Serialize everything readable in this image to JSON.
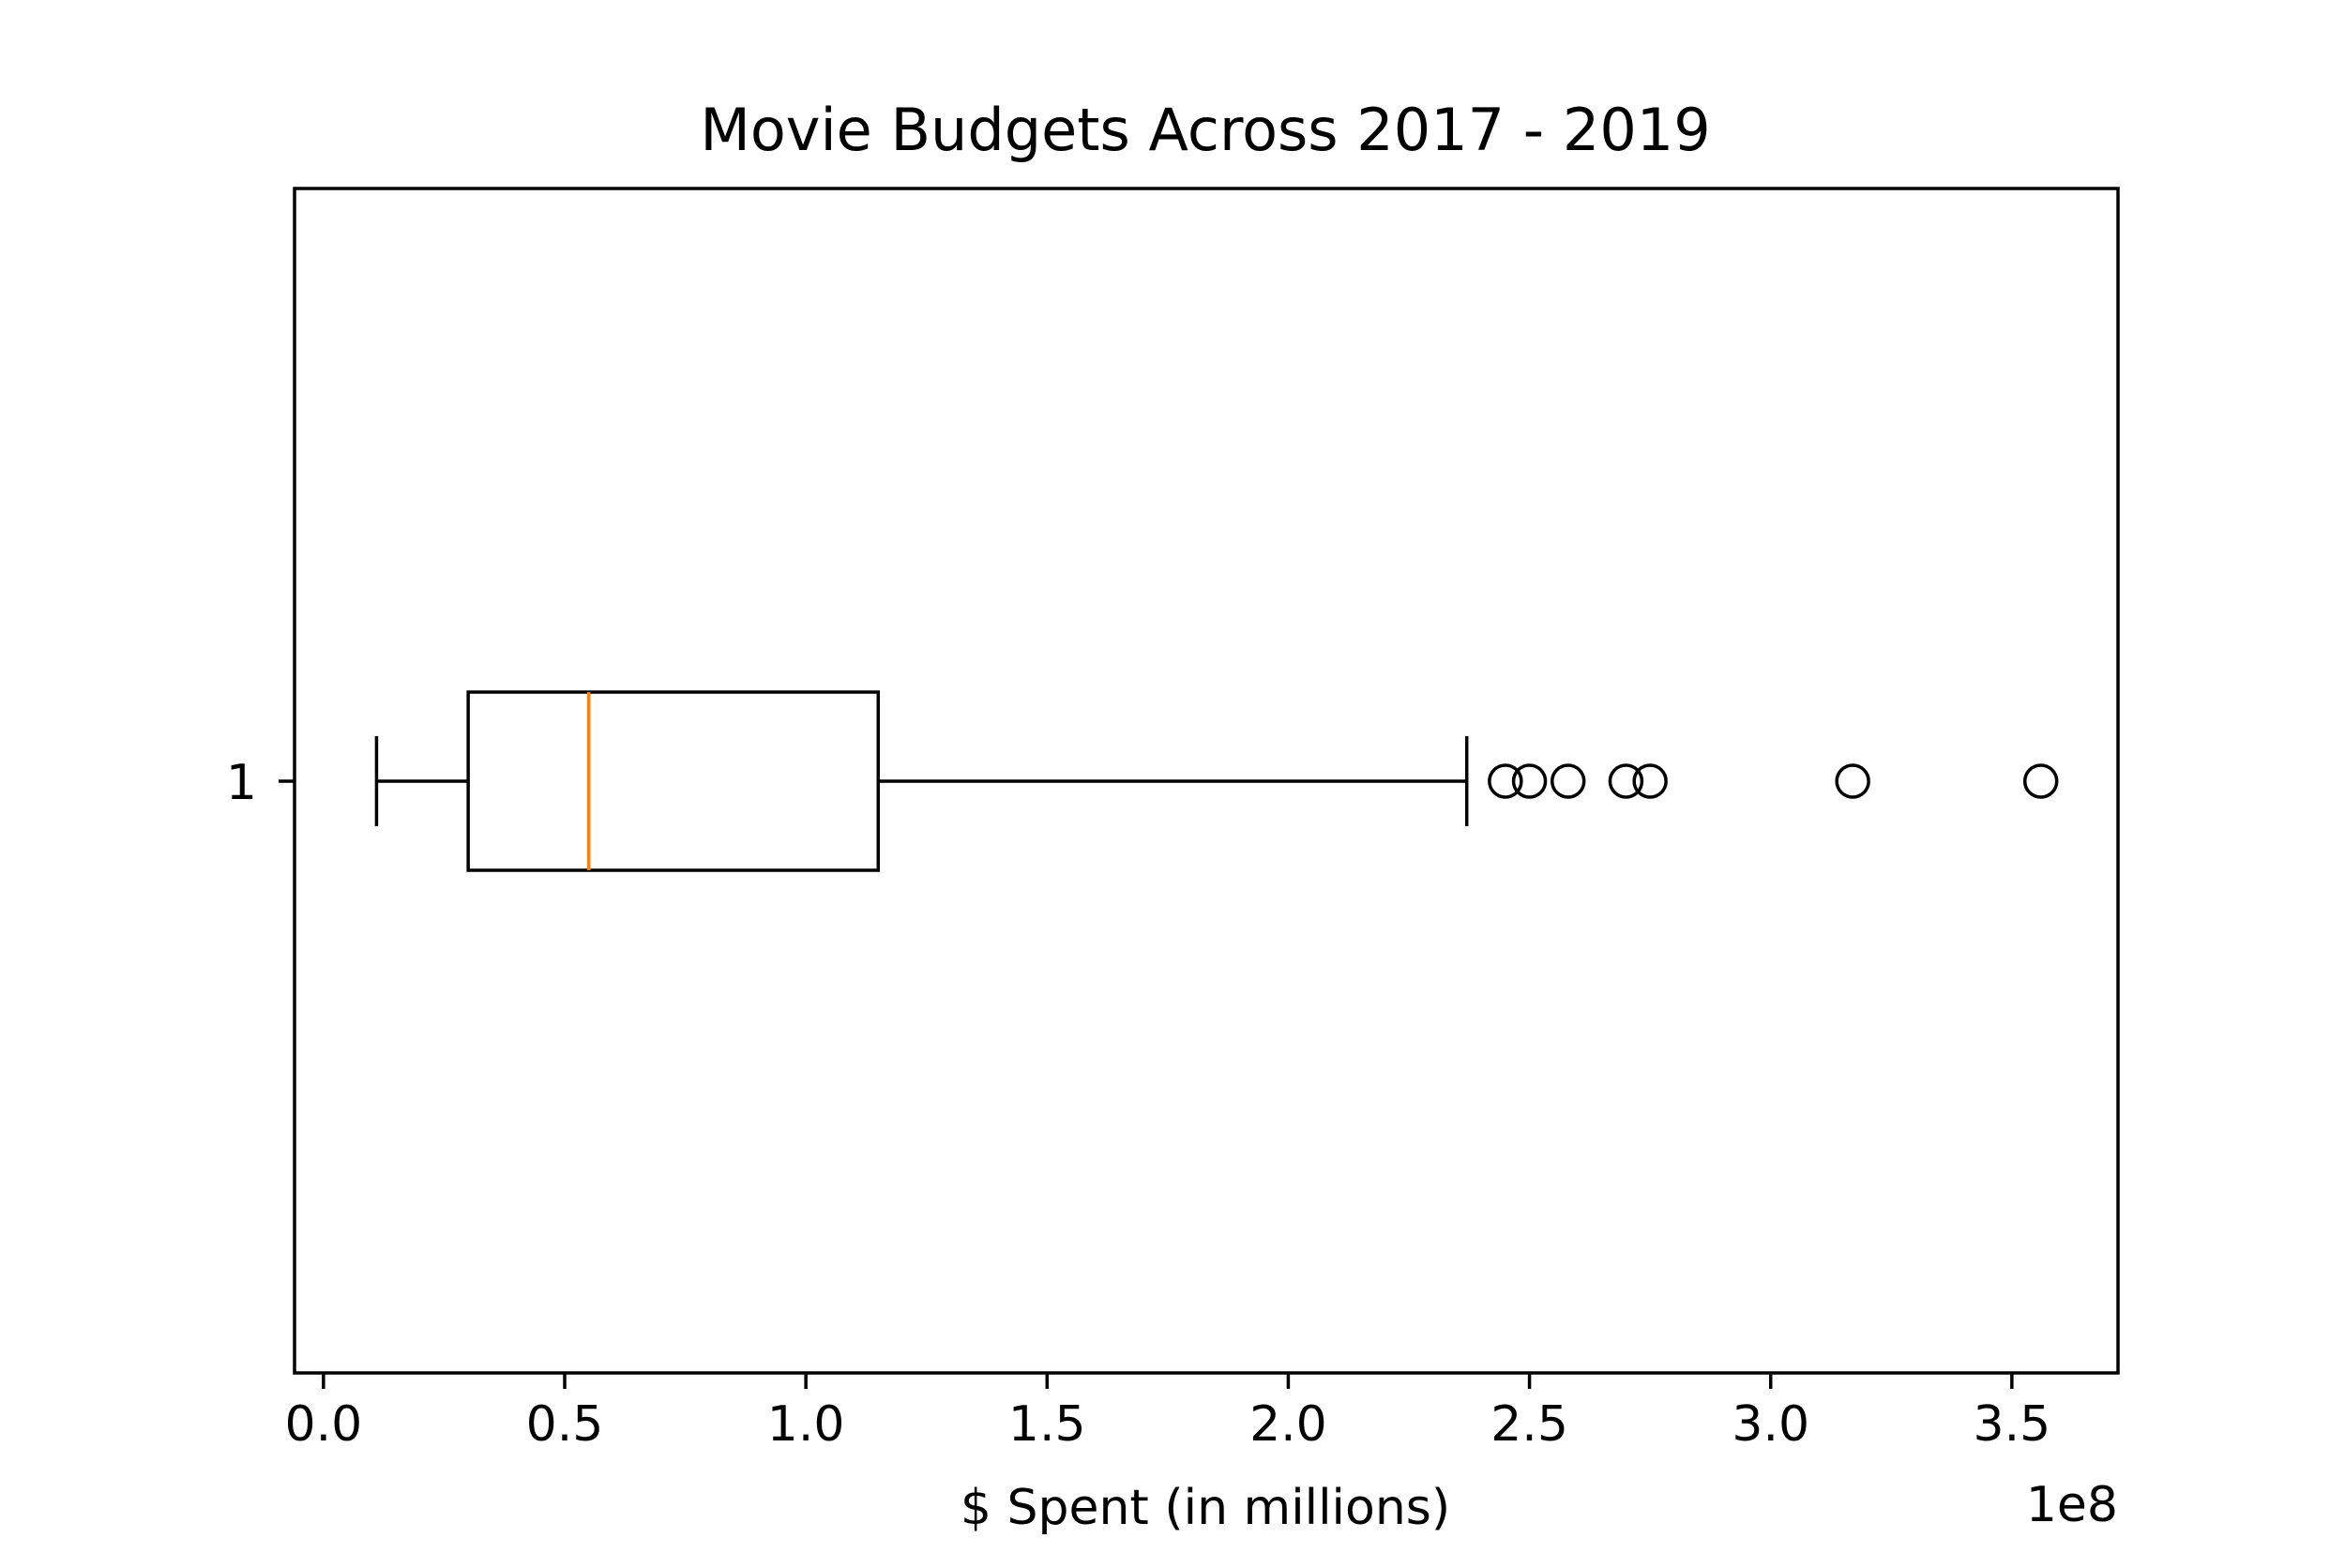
{
  "chart_data": {
    "type": "boxplot",
    "orientation": "horizontal",
    "title": "Movie Budgets Across 2017 - 2019",
    "xlabel": "$ Spent (in millions)",
    "ylabel": "",
    "x_offset_text": "1e8",
    "xlim": [
      -0.06,
      3.72
    ],
    "x_scale_factor": 100000000,
    "x_ticks": [
      0.0,
      0.5,
      1.0,
      1.5,
      2.0,
      2.5,
      3.0,
      3.5
    ],
    "x_tick_labels": [
      "0.0",
      "0.5",
      "1.0",
      "1.5",
      "2.0",
      "2.5",
      "3.0",
      "3.5"
    ],
    "y_tick_labels": [
      "1"
    ],
    "grid": false,
    "boxes": [
      {
        "category": "1",
        "whisker_low": 0.11,
        "q1": 0.3,
        "median": 0.55,
        "q3": 1.15,
        "whisker_high": 2.37,
        "outliers": [
          2.45,
          2.5,
          2.58,
          2.7,
          2.75,
          3.17,
          3.56
        ]
      }
    ],
    "colors": {
      "box": "#000000",
      "median": "#ff7f0e",
      "outlier": "#000000"
    }
  }
}
